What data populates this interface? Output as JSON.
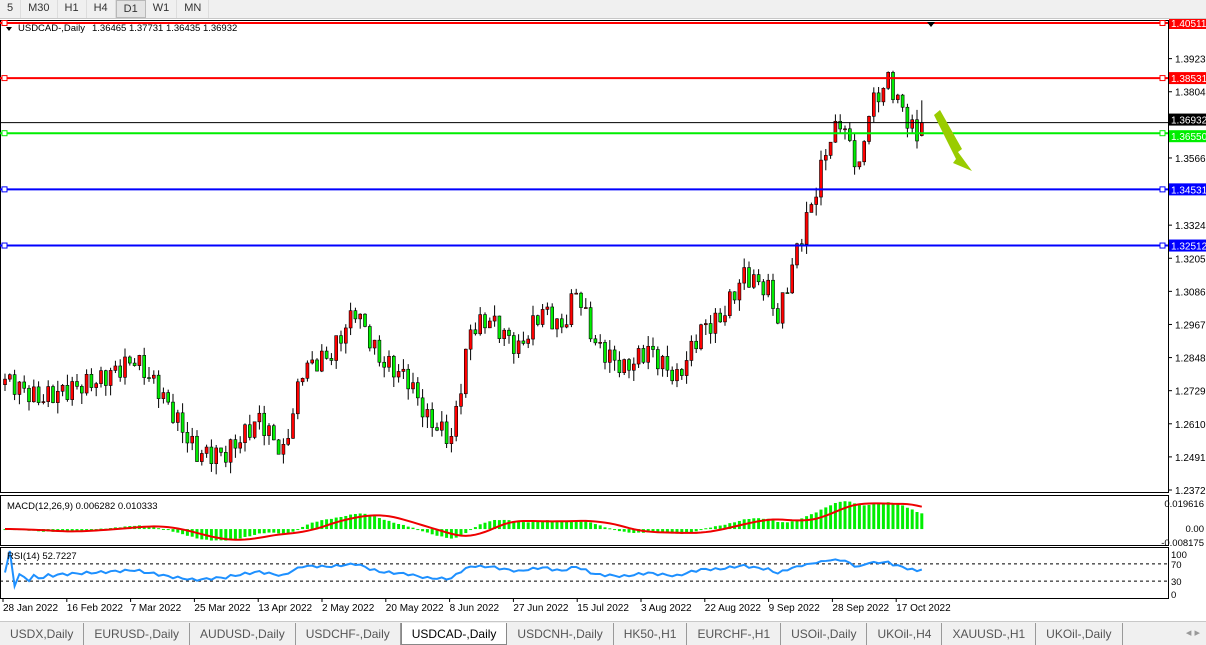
{
  "toolbar": {
    "timeframes": [
      "5",
      "M30",
      "H1",
      "H4",
      "D1",
      "W1",
      "MN"
    ],
    "active": "D1"
  },
  "header": {
    "symbol": "USDCAD-,Daily",
    "ohlc": "1.36465 1.37731 1.36435 1.36932"
  },
  "price_axis": {
    "ticks": [
      "1.39230",
      "1.38040",
      "1.35660",
      "1.33245",
      "1.32055",
      "1.30865",
      "1.29675",
      "1.28485",
      "1.27295",
      "1.26105",
      "1.24915",
      "1.23725"
    ],
    "min": 1.23725,
    "max": 1.40511
  },
  "levels": [
    {
      "price": "1.40511",
      "color": "#ff0000"
    },
    {
      "price": "1.38531",
      "color": "#ff0000"
    },
    {
      "price": "1.36932",
      "color": "#000000",
      "current": true
    },
    {
      "price": "1.36550",
      "color": "#00ee00"
    },
    {
      "price": "1.34531",
      "color": "#0000ff"
    },
    {
      "price": "1.32512",
      "color": "#0000ff"
    }
  ],
  "candles": {
    "count": 192,
    "key_closes": [
      [
        0,
        1.2771
      ],
      [
        7,
        1.27
      ],
      [
        20,
        1.277
      ],
      [
        27,
        1.2843
      ],
      [
        32,
        1.2735
      ],
      [
        40,
        1.2502
      ],
      [
        46,
        1.2502
      ],
      [
        53,
        1.2628
      ],
      [
        58,
        1.2502
      ],
      [
        62,
        1.2807
      ],
      [
        68,
        1.286
      ],
      [
        73,
        1.3022
      ],
      [
        78,
        1.2843
      ],
      [
        84,
        1.2771
      ],
      [
        88,
        1.2628
      ],
      [
        93,
        1.2556
      ],
      [
        97,
        1.295
      ],
      [
        101,
        1.2986
      ],
      [
        107,
        1.2878
      ],
      [
        112,
        1.3022
      ],
      [
        116,
        1.295
      ],
      [
        119,
        1.3093
      ],
      [
        123,
        1.2896
      ],
      [
        129,
        1.2807
      ],
      [
        134,
        1.2878
      ],
      [
        140,
        1.2771
      ],
      [
        145,
        1.295
      ],
      [
        149,
        1.2986
      ],
      [
        154,
        1.3147
      ],
      [
        159,
        1.3093
      ],
      [
        161,
        1.2986
      ],
      [
        165,
        1.3237
      ],
      [
        169,
        1.3452
      ],
      [
        171,
        1.3595
      ],
      [
        174,
        1.3703
      ],
      [
        178,
        1.3523
      ],
      [
        180,
        1.3738
      ],
      [
        184,
        1.3846
      ],
      [
        187,
        1.3738
      ],
      [
        190,
        1.3638
      ],
      [
        191,
        1.36932
      ]
    ],
    "up_color": "#ff0000",
    "down_color": "#00ee00"
  },
  "dates": [
    "28 Jan 2022",
    "16 Feb 2022",
    "7 Mar 2022",
    "25 Mar 2022",
    "13 Apr 2022",
    "2 May 2022",
    "20 May 2022",
    "8 Jun 2022",
    "27 Jun 2022",
    "15 Jul 2022",
    "3 Aug 2022",
    "22 Aug 2022",
    "9 Sep 2022",
    "28 Sep 2022",
    "17 Oct 2022"
  ],
  "macd": {
    "label": "MACD(12,26,9) 0.006282 0.010333",
    "ticks": [
      "0.019616",
      "0.00",
      "-0.008175"
    ],
    "max": 0.019616,
    "min": -0.008175,
    "hist_color": "#00ee00",
    "signal_color": "#ee0000"
  },
  "rsi": {
    "label": "RSI(14) 52.7227",
    "ticks": [
      "100",
      "70",
      "30",
      "0"
    ],
    "color": "#1e90ff"
  },
  "arrow": {
    "direction": "down",
    "color": "#99cc00"
  },
  "tabs": [
    "USDX,Daily",
    "EURUSD-,Daily",
    "AUDUSD-,Daily",
    "USDCHF-,Daily",
    "USDCAD-,Daily",
    "USDCNH-,Daily",
    "HK50-,H1",
    "EURCHF-,H1",
    "USOil-,Daily",
    "UKOil-,H4",
    "XAUUSD-,H1",
    "UKOil-,Daily"
  ],
  "active_tab": "USDCAD-,Daily"
}
